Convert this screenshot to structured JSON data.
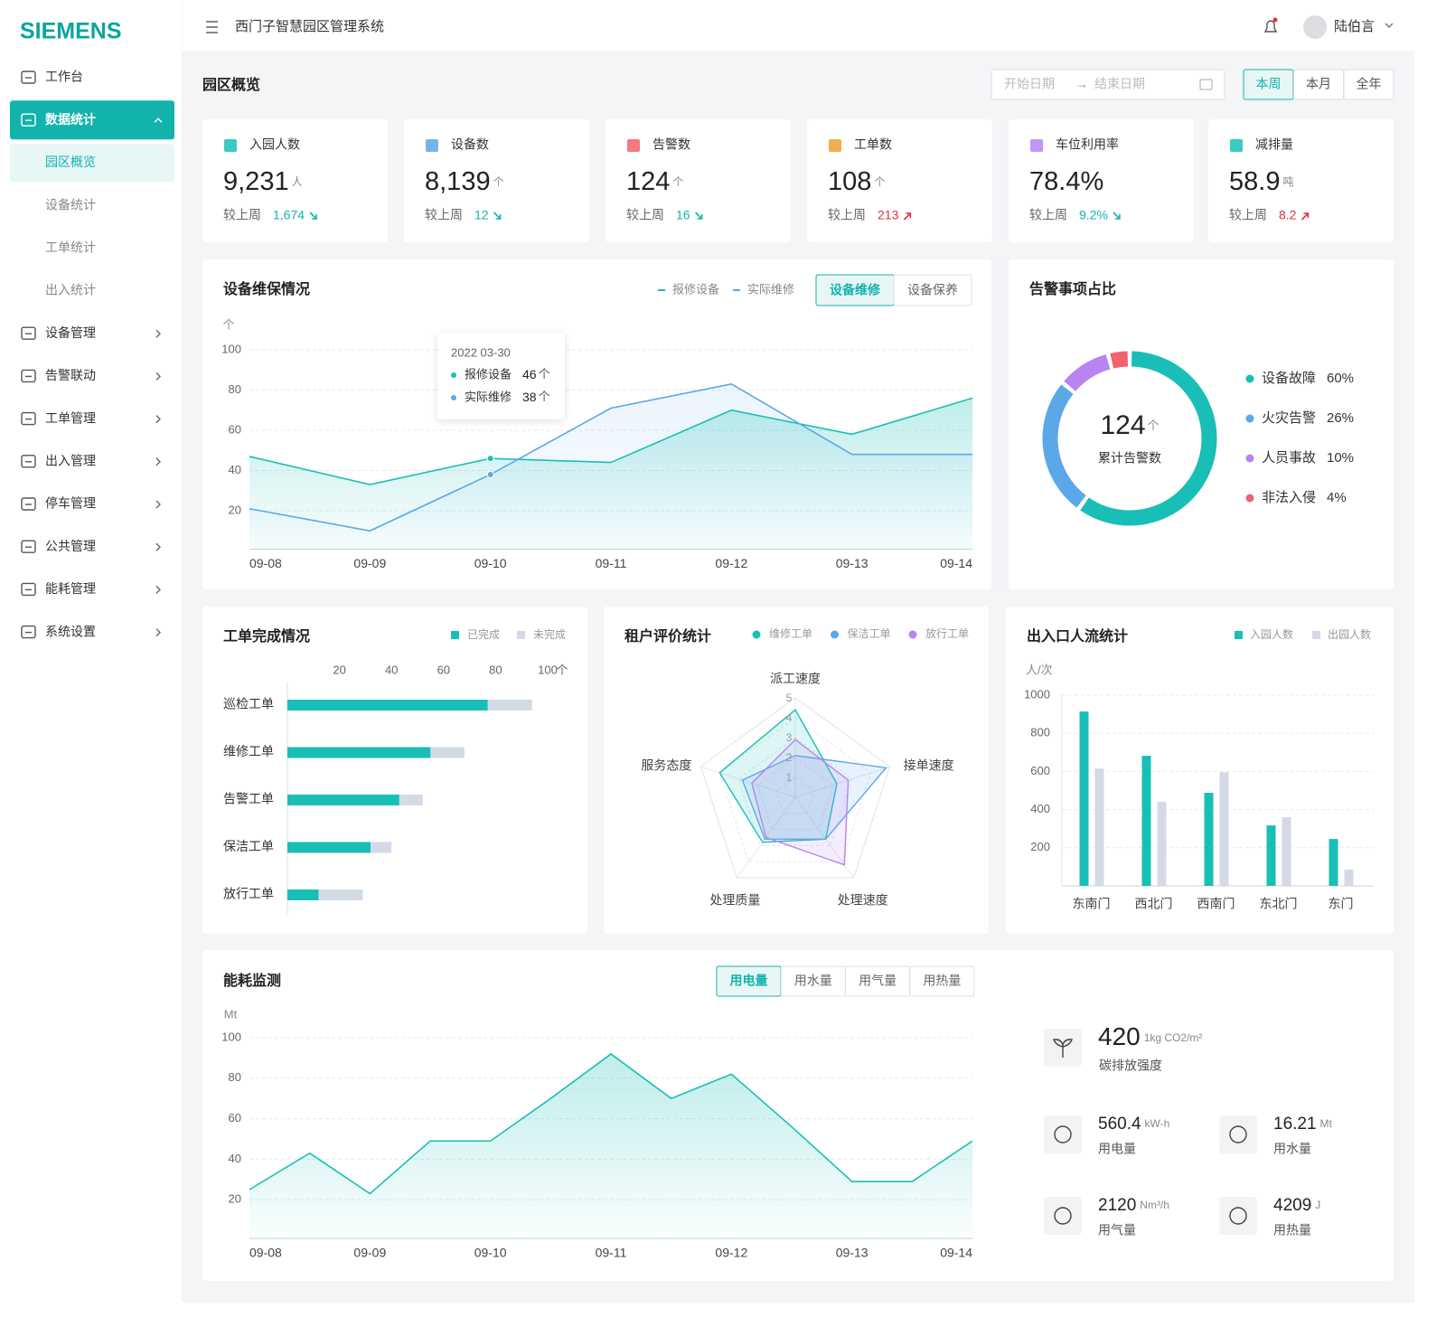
{
  "sidebar": {
    "logo": "SIEMENS",
    "menu": [
      {
        "label": "工作台"
      },
      {
        "label": "数据统计",
        "expanded": true,
        "children": [
          "园区概览",
          "设备统计",
          "工单统计",
          "出入统计"
        ],
        "active_child": 0
      },
      {
        "label": "设备管理"
      },
      {
        "label": "告警联动"
      },
      {
        "label": "工单管理"
      },
      {
        "label": "出入管理"
      },
      {
        "label": "停车管理"
      },
      {
        "label": "公共管理"
      },
      {
        "label": "能耗管理"
      },
      {
        "label": "系统设置"
      }
    ]
  },
  "header": {
    "title": "西门子智慧园区管理系统",
    "user": "陆伯言"
  },
  "page": {
    "title": "园区概览",
    "date_range": {
      "start": "开始日期",
      "separator": "→",
      "end": "结束日期"
    },
    "tabs": [
      "本周",
      "本月",
      "全年"
    ],
    "active_tab": 0
  },
  "kpis": [
    {
      "label": "入园人数",
      "value": "9,231",
      "unit": "人",
      "compare": "较上周",
      "delta": "1,674",
      "trend": "down"
    },
    {
      "label": "设备数",
      "value": "8,139",
      "unit": "个",
      "compare": "较上周",
      "delta": "12",
      "trend": "down"
    },
    {
      "label": "告警数",
      "value": "124",
      "unit": "个",
      "compare": "较上周",
      "delta": "16",
      "trend": "down"
    },
    {
      "label": "工单数",
      "value": "108",
      "unit": "个",
      "compare": "较上周",
      "delta": "213",
      "trend": "up"
    },
    {
      "label": "车位利用率",
      "value": "78.4%",
      "compare": "较上周",
      "delta": "9.2%",
      "trend": "down"
    },
    {
      "label": "减排量",
      "value": "58.9",
      "unit": "吨",
      "compare": "较上周",
      "delta": "8.2",
      "trend": "up"
    }
  ],
  "chart_data": [
    {
      "type": "line",
      "title": "设备维保情况",
      "y_unit": "个",
      "toggle": [
        "设备维修",
        "设备保养"
      ],
      "active_toggle": 0,
      "categories": [
        "09-08",
        "09-09",
        "09-10",
        "09-11",
        "09-12",
        "09-13",
        "09-14"
      ],
      "series": [
        {
          "name": "报修设备",
          "color": "#19bfb6",
          "values": [
            47,
            33,
            46,
            44,
            70,
            58,
            76
          ]
        },
        {
          "name": "实际维修",
          "color": "#5ba8e8",
          "values": [
            21,
            10,
            38,
            71,
            83,
            48,
            48
          ]
        }
      ],
      "ylim": [
        0,
        100
      ],
      "yticks": [
        20,
        40,
        60,
        80,
        100
      ],
      "grid": true,
      "tooltip": {
        "title": "2022 03-30",
        "index": 2,
        "unit": "个"
      }
    },
    {
      "type": "pie",
      "title": "告警事项占比",
      "donut": true,
      "center_value": "124",
      "center_unit": "个",
      "center_label": "累计告警数",
      "categories": [
        "设备故障",
        "火灾告警",
        "人员事故",
        "非法入侵"
      ],
      "values": [
        60,
        26,
        10,
        4
      ],
      "value_labels": [
        "60%",
        "26%",
        "10%",
        "4%"
      ],
      "colors": [
        "#19bfb6",
        "#5ba8e8",
        "#b784f2",
        "#f2626b"
      ]
    },
    {
      "type": "bar",
      "orientation": "horizontal",
      "stacked": true,
      "title": "工单完成情况",
      "x_unit": "个",
      "categories": [
        "巡检工单",
        "维修工单",
        "告警工单",
        "保洁工单",
        "放行工单"
      ],
      "series": [
        {
          "name": "已完成",
          "color": "#19bfb6",
          "values": [
            77,
            55,
            43,
            32,
            12
          ]
        },
        {
          "name": "未完成",
          "color": "#d4d9e6",
          "values": [
            17,
            13,
            9,
            8,
            17
          ]
        }
      ],
      "xlim": [
        0,
        100
      ],
      "xticks": [
        20,
        40,
        60,
        80,
        100
      ]
    },
    {
      "type": "radar",
      "title": "租户评价统计",
      "categories": [
        "派工速度",
        "接单速度",
        "处理速度",
        "处理质量",
        "服务态度"
      ],
      "series": [
        {
          "name": "维修工单",
          "color": "#19bfb6",
          "values": [
            4.4,
            2.2,
            2.6,
            2.8,
            4.0
          ]
        },
        {
          "name": "保洁工单",
          "color": "#5ba8e8",
          "values": [
            2.1,
            4.8,
            2.6,
            2.6,
            2.8
          ]
        },
        {
          "name": "放行工单",
          "color": "#b784f2",
          "values": [
            2.9,
            2.8,
            4.2,
            2.5,
            2.3
          ]
        }
      ],
      "rlim": [
        0,
        5
      ],
      "rticks": [
        1,
        2,
        3,
        4,
        5
      ]
    },
    {
      "type": "bar",
      "orientation": "vertical",
      "title": "出入口人流统计",
      "y_unit": "人/次",
      "categories": [
        "东南门",
        "西北门",
        "西南门",
        "东北门",
        "东门"
      ],
      "series": [
        {
          "name": "入园人数",
          "color": "#19bfb6",
          "values": [
            914,
            682,
            488,
            317,
            246
          ]
        },
        {
          "name": "出园人数",
          "color": "#d4d9e6",
          "values": [
            615,
            440,
            596,
            360,
            85
          ]
        }
      ],
      "ylim": [
        0,
        1000
      ],
      "yticks": [
        200,
        400,
        600,
        800,
        1000
      ],
      "grid": true
    },
    {
      "type": "line",
      "title": "能耗监测",
      "y_unit": "Mt",
      "tabs": [
        "用电量",
        "用水量",
        "用气量",
        "用热量"
      ],
      "active_tab": 0,
      "categories": [
        "09-08",
        null,
        "09-09",
        null,
        "09-10",
        null,
        "09-11",
        null,
        "09-12",
        null,
        "09-13",
        null,
        "09-14"
      ],
      "values": [
        25,
        43,
        23,
        49,
        49,
        70,
        92,
        70,
        82,
        56,
        29,
        29,
        49
      ],
      "color": "#19bfb6",
      "ylim": [
        0,
        100
      ],
      "yticks": [
        20,
        40,
        60,
        80,
        100
      ],
      "grid": true
    }
  ],
  "energy_stats": {
    "featured": {
      "value": "420",
      "unit": "1kg CO2/m²",
      "label": "碳排放强度"
    },
    "items": [
      {
        "value": "560.4",
        "unit": "kW-h",
        "label": "用电量"
      },
      {
        "value": "16.21",
        "unit": "Mt",
        "label": "用水量"
      },
      {
        "value": "2120",
        "unit": "Nm³/h",
        "label": "用气量"
      },
      {
        "value": "4209",
        "unit": "J",
        "label": "用热量"
      }
    ]
  }
}
